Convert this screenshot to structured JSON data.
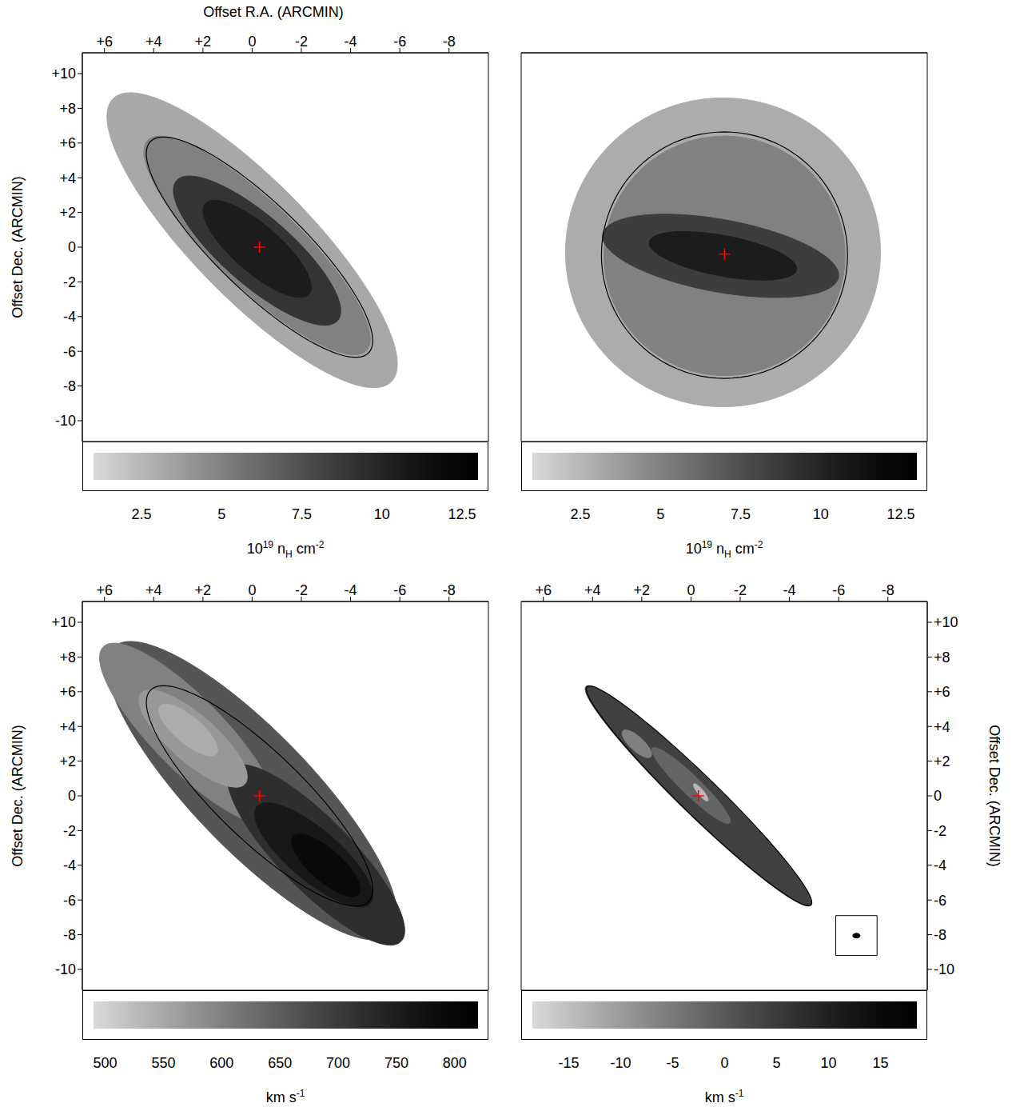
{
  "chart_data": [
    {
      "type": "image",
      "x_label": "Offset R.A. (ARCMIN)",
      "y_label": "Offset Dec. (ARCMIN)",
      "tick_labels": true,
      "xlim": [
        6.9,
        -9.6
      ],
      "ylim": [
        -11.2,
        11.2
      ],
      "xticks": [
        {
          "value": 6,
          "label": "+6"
        },
        {
          "value": 4,
          "label": "+4"
        },
        {
          "value": 2,
          "label": "+2"
        },
        0,
        -2,
        -4,
        -6,
        -8
      ],
      "yticks": [
        {
          "value": 10,
          "label": "+10"
        },
        {
          "value": 8,
          "label": "+8"
        },
        {
          "value": 6,
          "label": "+6"
        },
        {
          "value": 4,
          "label": "+4"
        },
        {
          "value": 2,
          "label": "+2"
        },
        0,
        -2,
        -4,
        -6,
        -8,
        -10
      ],
      "regions": [
        {
          "value": 3.2,
          "center": [
            0.0,
            0.4
          ],
          "half_width": 5.9,
          "half_height": 8.5,
          "phase_deg": 33
        },
        {
          "value": 5.0,
          "center": [
            -0.2,
            0.1
          ],
          "half_width": 4.6,
          "half_height": 6.3,
          "phase_deg": 31
        },
        {
          "value": 9.0,
          "center": [
            -0.2,
            -0.2
          ],
          "half_width": 3.4,
          "half_height": 4.3,
          "phase_deg": 36
        },
        {
          "value": 10.5,
          "center": [
            -0.2,
            -0.1
          ],
          "half_width": 2.2,
          "half_height": 2.8,
          "phase_deg": 38
        }
      ],
      "ellipse": {
        "center": [
          -0.3,
          0.0
        ],
        "half_width": 4.6,
        "half_height": 6.35,
        "phase_deg": 32
      },
      "center_marker": {
        "x": -0.3,
        "y": 0.0,
        "color": "#ff0000",
        "marker": "plus"
      },
      "colorbar": {
        "range": [
          1,
          13
        ],
        "ticks": [
          2.5,
          5,
          7.5,
          10,
          12.5
        ],
        "label": [
          "10",
          {
            "sup": "19"
          },
          " n",
          {
            "sub": "H"
          },
          " cm",
          {
            "sup": "-2"
          }
        ]
      }
    },
    {
      "type": "image",
      "tick_labels": false,
      "xlim": [
        6.9,
        -9.6
      ],
      "ylim": [
        -11.2,
        11.2
      ],
      "regions": [
        {
          "value": 3.0,
          "center": [
            -1.3,
            -0.3
          ],
          "half_width": 6.4,
          "half_height": 8.9,
          "phase_deg": 90
        },
        {
          "value": 5.0,
          "center": [
            -1.36,
            -0.5
          ],
          "half_width": 4.9,
          "half_height": 6.9,
          "phase_deg": 90
        },
        {
          "value": 8.5,
          "center": [
            -1.2,
            -0.5
          ],
          "half_width": 4.8,
          "half_height": 2.4,
          "phase_deg": 62
        },
        {
          "value": 10.5,
          "center": [
            -1.3,
            -0.5
          ],
          "half_width": 3.0,
          "half_height": 1.4,
          "phase_deg": 58
        }
      ],
      "ellipse": {
        "center": [
          -1.36,
          -0.46
        ],
        "half_width": 5.0,
        "half_height": 7.1,
        "phase_deg": 90
      },
      "center_marker": {
        "x": -1.36,
        "y": -0.4,
        "color": "#ff0000",
        "marker": "plus"
      },
      "colorbar": {
        "range": [
          1,
          13
        ],
        "ticks": [
          2.5,
          5,
          7.5,
          10,
          12.5
        ],
        "label": [
          "10",
          {
            "sup": "19"
          },
          " n",
          {
            "sub": "H"
          },
          " cm",
          {
            "sup": "-2"
          }
        ]
      }
    },
    {
      "type": "image",
      "y_label": "Offset Dec. (ARCMIN)",
      "tick_labels": true,
      "xlim": [
        6.9,
        -9.6
      ],
      "ylim": [
        -11.2,
        11.2
      ],
      "xticks": [
        {
          "value": 6,
          "label": "+6"
        },
        {
          "value": 4,
          "label": "+4"
        },
        {
          "value": 2,
          "label": "+2"
        },
        0,
        -2,
        -4,
        -6,
        -8
      ],
      "yticks": [
        {
          "value": 10,
          "label": "+10"
        },
        {
          "value": 8,
          "label": "+8"
        },
        {
          "value": 6,
          "label": "+6"
        },
        {
          "value": 4,
          "label": "+4"
        },
        {
          "value": 2,
          "label": "+2"
        },
        0,
        -2,
        -4,
        -6,
        -8,
        -10
      ],
      "regions": [
        {
          "value": 660,
          "center": [
            0.0,
            0.3
          ],
          "half_width": 5.9,
          "half_height": 8.6,
          "phase_deg": 33
        },
        {
          "value": 600,
          "center": [
            2.6,
            3.6
          ],
          "half_width": 3.6,
          "half_height": 5.2,
          "phase_deg": 33
        },
        {
          "value": 720,
          "center": [
            -2.6,
            -3.4
          ],
          "half_width": 3.6,
          "half_height": 5.2,
          "phase_deg": 33
        },
        {
          "value": 570,
          "center": [
            2.4,
            3.3
          ],
          "half_width": 2.2,
          "half_height": 2.8,
          "phase_deg": 38
        },
        {
          "value": 760,
          "center": [
            -2.5,
            -3.4
          ],
          "half_width": 2.4,
          "half_height": 3.0,
          "phase_deg": 38
        },
        {
          "value": 790,
          "center": [
            -3.0,
            -4.0
          ],
          "half_width": 1.4,
          "half_height": 1.8,
          "phase_deg": 40
        },
        {
          "value": 545,
          "center": [
            2.6,
            3.8
          ],
          "half_width": 1.2,
          "half_height": 1.5,
          "phase_deg": 40
        }
      ],
      "ellipse": {
        "center": [
          -0.3,
          0.0
        ],
        "half_width": 4.6,
        "half_height": 6.35,
        "phase_deg": 32
      },
      "center_marker": {
        "x": -0.3,
        "y": 0.0,
        "color": "#ff0000",
        "marker": "plus"
      },
      "colorbar": {
        "range": [
          490,
          820
        ],
        "ticks": [
          500,
          550,
          600,
          650,
          700,
          750,
          800
        ],
        "label": [
          "km s",
          {
            "sup": "-1"
          }
        ]
      }
    },
    {
      "type": "image",
      "y_label": "Offset Dec. (ARCMIN)",
      "tick_labels": true,
      "xlim": [
        6.9,
        -9.6
      ],
      "ylim": [
        -11.2,
        11.2
      ],
      "xticks": [
        {
          "value": 6,
          "label": "+6"
        },
        {
          "value": 4,
          "label": "+4"
        },
        {
          "value": 2,
          "label": "+2"
        },
        0,
        -2,
        -4,
        -6,
        -8
      ],
      "yticks": [
        {
          "value": 10,
          "label": "+10"
        },
        {
          "value": 8,
          "label": "+8"
        },
        {
          "value": 6,
          "label": "+6"
        },
        {
          "value": 4,
          "label": "+4"
        },
        {
          "value": 2,
          "label": "+2"
        },
        0,
        -2,
        -4,
        -6,
        -8,
        -10
      ],
      "regions": [
        {
          "value": 4,
          "center": [
            -0.3,
            0.0
          ],
          "half_width": 4.6,
          "half_height": 6.35,
          "phase_deg": 14
        },
        {
          "value": -2,
          "center": [
            0.0,
            0.6
          ],
          "half_width": 1.6,
          "half_height": 2.2,
          "phase_deg": 20
        },
        {
          "value": -14,
          "center": [
            -0.4,
            0.2
          ],
          "half_width": 0.3,
          "half_height": 0.5,
          "phase_deg": 30
        },
        {
          "value": -6,
          "center": [
            2.2,
            3.0
          ],
          "half_width": 0.6,
          "half_height": 0.8,
          "phase_deg": 40
        }
      ],
      "ellipse": {
        "center": [
          -0.33,
          0.0
        ],
        "half_width": 4.58,
        "half_height": 6.33,
        "phase_deg": 14
      },
      "center_marker": {
        "x": -0.3,
        "y": 0.0,
        "color": "#ff0000",
        "marker": "plus"
      },
      "beam": {
        "box_x": [
          -5.88,
          -7.56
        ],
        "box_y": [
          -6.9,
          -9.2
        ],
        "center": [
          -6.72,
          -8.06
        ]
      },
      "colorbar": {
        "range": [
          -18.5,
          18.5
        ],
        "ticks": [
          -15,
          -10,
          -5,
          0,
          5,
          10,
          15
        ],
        "label": [
          "km s",
          {
            "sup": "-1"
          }
        ]
      }
    }
  ]
}
